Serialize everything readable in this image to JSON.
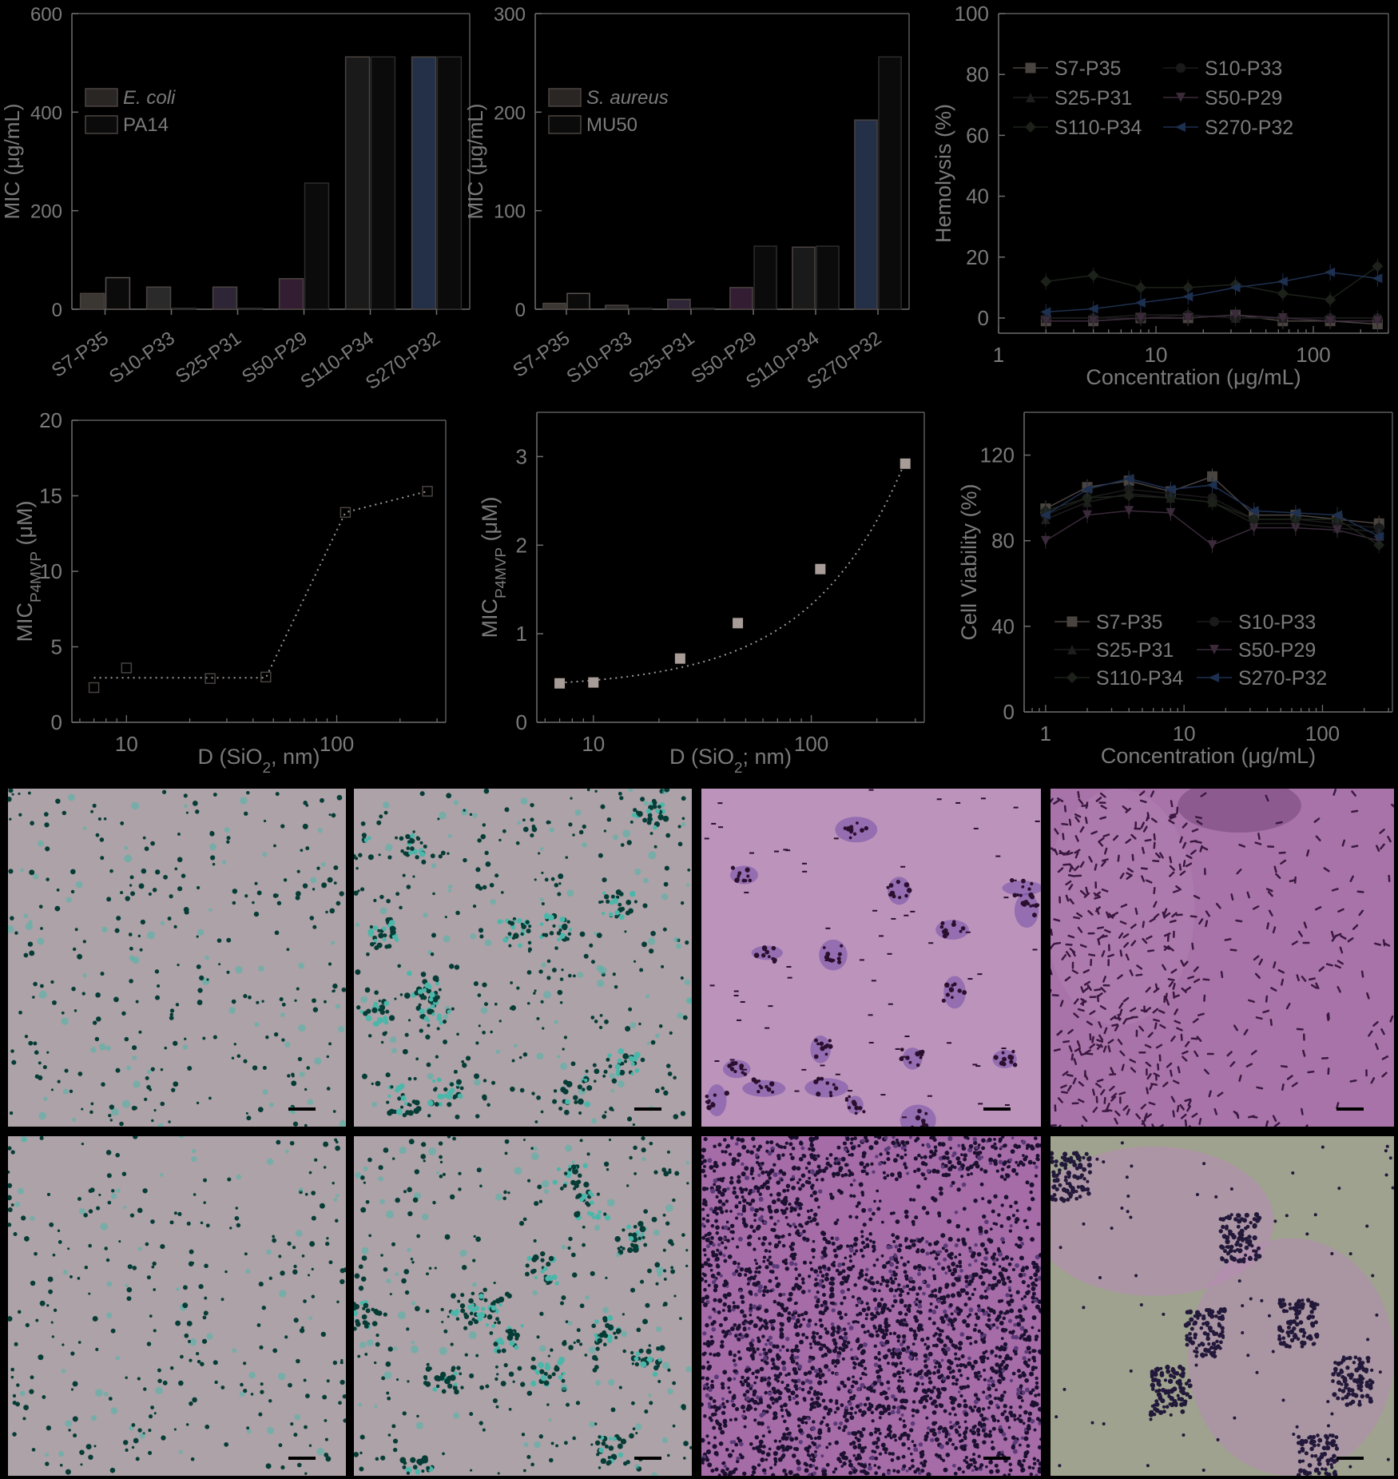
{
  "chart_data": [
    {
      "id": "mic-gram-negative",
      "type": "bar",
      "title": "",
      "xlabel": "",
      "ylabel": "MIC (μg/mL)",
      "ylim": [
        0,
        600
      ],
      "yticks": [
        "0",
        "200",
        "400",
        "600"
      ],
      "categories": [
        "S7-P35",
        "S10-P33",
        "S25-P31",
        "S50-P29",
        "S110-P34",
        "S270-P32"
      ],
      "legend_placement": "upper-left",
      "series": [
        {
          "name": "E. coli",
          "italic": true,
          "values": [
            32,
            45,
            45,
            62,
            512,
            512
          ],
          "color": "#2a2624"
        },
        {
          "name": "PA14",
          "italic": false,
          "values": [
            64,
            2,
            2,
            256,
            512,
            512
          ],
          "color": "#161616"
        }
      ],
      "colors": [
        "#3a3632",
        "#2a2a2a",
        "#2e2636",
        "#321d32",
        "#1a1a1a",
        "#243048"
      ]
    },
    {
      "id": "mic-gram-positive",
      "type": "bar",
      "title": "",
      "xlabel": "",
      "ylabel": "MIC (μg/mL)",
      "ylim": [
        0,
        300
      ],
      "yticks": [
        "0",
        "100",
        "200",
        "300"
      ],
      "categories": [
        "S7-P35",
        "S10-P33",
        "S25-P31",
        "S50-P29",
        "S110-P34",
        "S270-P32"
      ],
      "legend_placement": "upper-left",
      "series": [
        {
          "name": "S. aureus",
          "italic": true,
          "values": [
            6,
            4,
            10,
            22,
            63,
            192
          ],
          "color": "#2a2624"
        },
        {
          "name": "MU50",
          "italic": false,
          "values": [
            16,
            1,
            1,
            64,
            64,
            256
          ],
          "color": "#161616"
        }
      ],
      "colors": [
        "#3a3632",
        "#2a2a2a",
        "#2e2636",
        "#321d32",
        "#1a1a1a",
        "#243048"
      ]
    },
    {
      "id": "hemolysis",
      "type": "line",
      "title": "",
      "xlabel": "Concentration (μg/mL)",
      "ylabel": "Hemolysis (%)",
      "xscale": "log",
      "xlim": [
        1,
        300
      ],
      "xticks": [
        "1",
        "10",
        "100"
      ],
      "ylim": [
        -5,
        100
      ],
      "yticks": [
        "0",
        "20",
        "40",
        "60",
        "80",
        "100"
      ],
      "x": [
        2,
        4,
        8,
        16,
        32,
        64,
        128,
        256
      ],
      "legend_placement": "upper",
      "series": [
        {
          "name": "S7-P35",
          "marker": "square",
          "color": "#4a4440",
          "values": [
            -1,
            -1,
            0,
            0,
            1,
            -1,
            -1,
            -2
          ]
        },
        {
          "name": "S10-P33",
          "marker": "circle",
          "color": "#1a1a1a",
          "values": [
            0,
            0,
            0,
            1,
            0,
            0,
            0,
            0
          ]
        },
        {
          "name": "S25-P31",
          "marker": "triangle",
          "color": "#1d1d1d",
          "values": [
            0,
            0,
            1,
            1,
            0,
            0,
            0,
            0
          ]
        },
        {
          "name": "S50-P29",
          "marker": "triangle-down",
          "color": "#3a2a3a",
          "values": [
            -1,
            -1,
            0,
            0,
            1,
            0,
            -1,
            -1
          ]
        },
        {
          "name": "S110-P34",
          "marker": "diamond",
          "color": "#1c221a",
          "values": [
            12,
            14,
            10,
            10,
            11,
            8,
            6,
            17
          ]
        },
        {
          "name": "S270-P32",
          "marker": "triangle-left",
          "color": "#1e3050",
          "values": [
            2,
            3,
            5,
            7,
            10,
            12,
            15,
            13
          ]
        }
      ]
    },
    {
      "id": "mic-vs-diameter-1",
      "type": "scatter",
      "title": "",
      "xlabel": "D (SiO2, nm)",
      "ylabel": "MICP4MVP (μM)",
      "xscale": "log",
      "xlim": [
        5.5,
        330
      ],
      "xticks": [
        "10",
        "100"
      ],
      "ylim": [
        0,
        20
      ],
      "yticks": [
        "0",
        "5",
        "10",
        "15",
        "20"
      ],
      "series": [
        {
          "name": "",
          "marker": "hollow-square",
          "color": "#4a4440",
          "x": [
            7,
            10,
            25,
            46,
            110,
            270
          ],
          "values": [
            2.3,
            3.6,
            2.9,
            3.0,
            13.9,
            15.3
          ]
        }
      ],
      "fit": {
        "x": [
          7,
          46,
          110,
          270
        ],
        "values": [
          2.95,
          2.95,
          13.9,
          15.3
        ]
      }
    },
    {
      "id": "mic-vs-diameter-2",
      "type": "scatter",
      "title": "",
      "xlabel": "D (SiO2; nm)",
      "ylabel": "MICP4MVP (μM)",
      "xscale": "log",
      "xlim": [
        5.5,
        330
      ],
      "xticks": [
        "10",
        "100"
      ],
      "ylim": [
        0,
        3.5
      ],
      "yticks": [
        "0",
        "1",
        "2",
        "3"
      ],
      "series": [
        {
          "name": "",
          "marker": "filled-square",
          "color": "#a89c98",
          "x": [
            7,
            10,
            25,
            46,
            110,
            270
          ],
          "values": [
            0.44,
            0.45,
            0.72,
            1.12,
            1.73,
            2.92
          ]
        }
      ]
    },
    {
      "id": "cell-viability",
      "type": "line",
      "title": "",
      "xlabel": "Concentration (μg/mL)",
      "ylabel": "Cell Viability (%)",
      "xscale": "log",
      "xlim": [
        0.7,
        320
      ],
      "xticks": [
        "1",
        "10",
        "100"
      ],
      "ylim": [
        0,
        140
      ],
      "yticks": [
        "0",
        "40",
        "80",
        "120"
      ],
      "x": [
        1,
        2,
        4,
        8,
        16,
        32,
        64,
        128,
        256
      ],
      "legend_placement": "lower",
      "series": [
        {
          "name": "S7-P35",
          "marker": "square",
          "color": "#4a4440",
          "values": [
            95,
            105,
            108,
            103,
            110,
            92,
            92,
            90,
            88
          ]
        },
        {
          "name": "S10-P33",
          "marker": "circle",
          "color": "#1a1a1a",
          "values": [
            92,
            100,
            104,
            102,
            100,
            90,
            90,
            88,
            86
          ]
        },
        {
          "name": "S25-P31",
          "marker": "triangle",
          "color": "#1d1d1d",
          "values": [
            90,
            98,
            102,
            100,
            98,
            88,
            88,
            86,
            84
          ]
        },
        {
          "name": "S50-P29",
          "marker": "triangle-down",
          "color": "#3a2a3a",
          "values": [
            80,
            92,
            94,
            93,
            78,
            86,
            86,
            85,
            80
          ]
        },
        {
          "name": "S110-P34",
          "marker": "diamond",
          "color": "#1c221a",
          "values": [
            94,
            100,
            101,
            100,
            98,
            90,
            90,
            90,
            78
          ]
        },
        {
          "name": "S270-P32",
          "marker": "triangle-left",
          "color": "#1e3050",
          "values": [
            92,
            104,
            109,
            104,
            106,
            94,
            93,
            92,
            82
          ]
        }
      ]
    }
  ],
  "micrographs": [
    {
      "bg": "#aca2a7",
      "cell": "#063c36",
      "halo": "#4ab7aa",
      "style": "sparse",
      "seed": 11
    },
    {
      "bg": "#aca2a7",
      "cell": "#063c36",
      "halo": "#4ab7aa",
      "style": "clustered",
      "seed": 23
    },
    {
      "bg": "#bc94bb",
      "cell": "#2a0f2e",
      "halo": "#6e45a8",
      "style": "patches",
      "seed": 37
    },
    {
      "bg": "#a873a8",
      "cell": "#3a1840",
      "halo": "#8a4f9a",
      "style": "rods",
      "seed": 41
    },
    {
      "bg": "#aca2a7",
      "cell": "#063c36",
      "halo": "#4ab7aa",
      "style": "sparse",
      "seed": 53
    },
    {
      "bg": "#aca2a7",
      "cell": "#063c36",
      "halo": "#4ab7aa",
      "style": "clustered",
      "seed": 67
    },
    {
      "bg": "#a66ca8",
      "cell": "#1c1030",
      "halo": "#5a3a78",
      "style": "dense",
      "seed": 79
    },
    {
      "bg": "#9fa28e",
      "cell": "#22183a",
      "halo": "#6d7070",
      "style": "aggregates",
      "seed": 83
    }
  ]
}
